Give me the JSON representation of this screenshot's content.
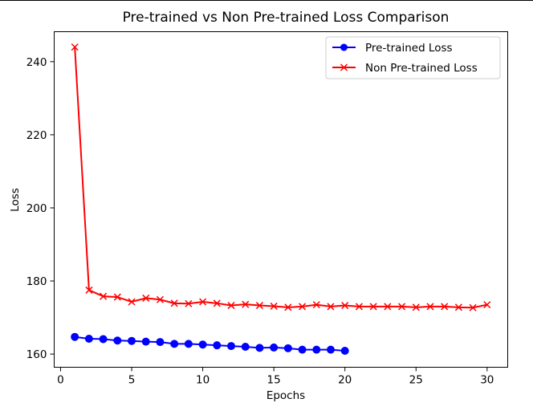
{
  "chart_data": {
    "type": "line",
    "title": "Pre-trained vs Non Pre-trained Loss Comparison",
    "xlabel": "Epochs",
    "ylabel": "Loss",
    "xlim": [
      -0.45,
      31.45
    ],
    "ylim": [
      156.4,
      248.2
    ],
    "xticks": [
      0,
      5,
      10,
      15,
      20,
      25,
      30
    ],
    "yticks": [
      160,
      180,
      200,
      220,
      240
    ],
    "grid": false,
    "legend_position": "top-right",
    "series": [
      {
        "name": "Pre-trained Loss",
        "color": "#0000ff",
        "marker": "circle",
        "x": [
          1,
          2,
          3,
          4,
          5,
          6,
          7,
          8,
          9,
          10,
          11,
          12,
          13,
          14,
          15,
          16,
          17,
          18,
          19,
          20
        ],
        "y": [
          164.7,
          164.2,
          164.1,
          163.7,
          163.6,
          163.4,
          163.3,
          162.8,
          162.8,
          162.6,
          162.4,
          162.2,
          162.0,
          161.7,
          161.8,
          161.6,
          161.2,
          161.2,
          161.2,
          160.9
        ]
      },
      {
        "name": "Non Pre-trained Loss",
        "color": "#ff0000",
        "marker": "x",
        "x": [
          1,
          2,
          3,
          4,
          5,
          6,
          7,
          8,
          9,
          10,
          11,
          12,
          13,
          14,
          15,
          16,
          17,
          18,
          19,
          20,
          21,
          22,
          23,
          24,
          25,
          26,
          27,
          28,
          29,
          30
        ],
        "y": [
          244.0,
          177.5,
          175.8,
          175.6,
          174.3,
          175.3,
          174.9,
          173.9,
          173.8,
          174.3,
          173.9,
          173.3,
          173.6,
          173.3,
          173.1,
          172.8,
          173.0,
          173.5,
          173.0,
          173.3,
          173.0,
          173.0,
          173.0,
          173.0,
          172.8,
          173.0,
          173.0,
          172.8,
          172.7,
          173.5
        ]
      }
    ]
  }
}
